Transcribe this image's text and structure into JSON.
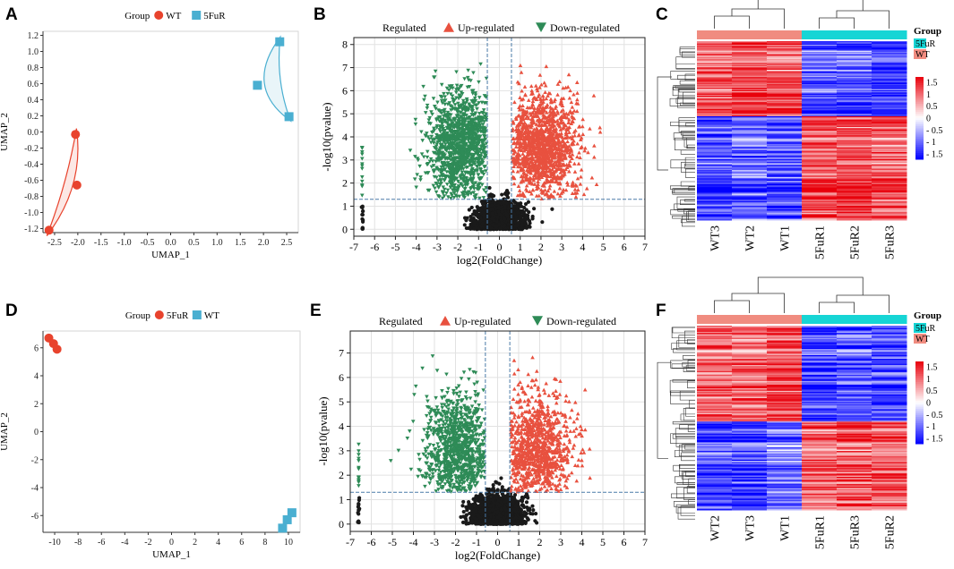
{
  "panels": {
    "A": {
      "label": "A"
    },
    "B": {
      "label": "B"
    },
    "C": {
      "label": "C"
    },
    "D": {
      "label": "D"
    },
    "E": {
      "label": "E"
    },
    "F": {
      "label": "F"
    }
  },
  "colors": {
    "wt": "#e8432d",
    "fur": "#4aafd1",
    "up": "#e8513f",
    "down": "#2e8b57",
    "ns": "#1a1a1a",
    "heat_high": "#e8000b",
    "heat_mid": "#ffffff",
    "heat_low": "#0000ff",
    "group_wt": "#f08c80",
    "group_fur": "#16d5d5"
  },
  "chart_data": [
    {
      "panel": "A",
      "type": "scatter",
      "xlabel": "UMAP_1",
      "ylabel": "UMAP_2",
      "xlim": [
        -2.75,
        2.75
      ],
      "ylim": [
        -1.25,
        1.25
      ],
      "xticks": [
        -2.5,
        -2.0,
        -1.5,
        -1.0,
        -0.5,
        0.0,
        0.5,
        1.0,
        1.5,
        2.0,
        2.5
      ],
      "yticks": [
        -1.2,
        -1.0,
        -0.8,
        -0.6,
        -0.4,
        -0.2,
        0.0,
        0.2,
        0.4,
        0.6,
        0.8,
        1.0,
        1.2
      ],
      "tick_decimals": 1,
      "legend": {
        "title": "Group",
        "entries": [
          "WT",
          "5FuR"
        ]
      },
      "series": [
        {
          "name": "WT",
          "marker": "circle",
          "points": [
            [
              -2.05,
              -0.03
            ],
            [
              -2.02,
              -0.66
            ],
            [
              -2.62,
              -1.22
            ]
          ]
        },
        {
          "name": "5FuR",
          "marker": "square",
          "points": [
            [
              2.35,
              1.12
            ],
            [
              1.87,
              0.58
            ],
            [
              2.55,
              0.19
            ]
          ]
        }
      ]
    },
    {
      "panel": "B",
      "type": "volcano",
      "xlabel": "log2(FoldChange)",
      "ylabel": "-log10(pvalue)",
      "xlim": [
        -7,
        7
      ],
      "ylim": [
        -0.3,
        8.3
      ],
      "xticks": [
        -7,
        -6,
        -5,
        -4,
        -3,
        -2,
        -1,
        0,
        1,
        2,
        3,
        4,
        5,
        6,
        7
      ],
      "yticks": [
        0,
        1,
        2,
        3,
        4,
        5,
        6,
        7,
        8
      ],
      "fc_threshold": [
        -0.58,
        0.58
      ],
      "p_threshold": 1.3,
      "legend": {
        "title": "Regulated",
        "entries": [
          "Up-regulated",
          "Down-regulated"
        ]
      },
      "seed": 11,
      "counts": {
        "up": 1300,
        "down": 1250,
        "ns": 1700
      },
      "up_center": [
        2.1,
        3.6
      ],
      "down_center": [
        -1.9,
        3.7
      ],
      "max_y": 7.9
    },
    {
      "panel": "C",
      "type": "heatmap",
      "samples": [
        "WT3",
        "WT2",
        "WT1",
        "5FuR1",
        "5FuR2",
        "5FuR3"
      ],
      "groups": [
        "WT",
        "WT",
        "WT",
        "5FuR",
        "5FuR",
        "5FuR"
      ],
      "legend_title": "Group",
      "legend_entries": [
        "5FuR",
        "WT"
      ],
      "colorbar_ticks": [
        "1.5",
        "1",
        "0.5",
        "0",
        "- 0.5",
        "- 1",
        "- 1.5"
      ],
      "colorbar_range": [
        -1.5,
        1.5
      ],
      "up_fraction": 0.42,
      "seed": 5
    },
    {
      "panel": "D",
      "type": "scatter",
      "xlabel": "UMAP_1",
      "ylabel": "UMAP_2",
      "xlim": [
        -11,
        11
      ],
      "ylim": [
        -7.2,
        7.2
      ],
      "xticks": [
        -10,
        -8,
        -6,
        -4,
        -2,
        0,
        2,
        4,
        6,
        8,
        10
      ],
      "yticks": [
        -6,
        -4,
        -2,
        0,
        2,
        4,
        6
      ],
      "tick_decimals": 0,
      "legend": {
        "title": "Group",
        "entries": [
          "5FuR",
          "WT"
        ]
      },
      "series": [
        {
          "name": "5FuR",
          "marker": "circle",
          "points": [
            [
              -10.5,
              6.7
            ],
            [
              -10.1,
              6.3
            ],
            [
              -9.8,
              5.9
            ]
          ]
        },
        {
          "name": "WT",
          "marker": "square",
          "points": [
            [
              9.5,
              -6.9
            ],
            [
              9.9,
              -6.3
            ],
            [
              10.3,
              -5.8
            ]
          ]
        }
      ]
    },
    {
      "panel": "E",
      "type": "volcano",
      "xlabel": "log2(FoldChange)",
      "ylabel": "-log10(pvalue)",
      "xlim": [
        -7,
        7
      ],
      "ylim": [
        -0.3,
        7.9
      ],
      "xticks": [
        -7,
        -6,
        -5,
        -4,
        -3,
        -2,
        -1,
        0,
        1,
        2,
        3,
        4,
        5,
        6,
        7
      ],
      "yticks": [
        0,
        1,
        2,
        3,
        4,
        5,
        6,
        7
      ],
      "fc_threshold": [
        -0.58,
        0.58
      ],
      "p_threshold": 1.3,
      "legend": {
        "title": "Regulated",
        "entries": [
          "Up-regulated",
          "Down-regulated"
        ]
      },
      "seed": 23,
      "counts": {
        "up": 950,
        "down": 950,
        "ns": 2000
      },
      "up_center": [
        1.9,
        3.2
      ],
      "down_center": [
        -1.9,
        3.2
      ],
      "max_y": 7.6
    },
    {
      "panel": "F",
      "type": "heatmap",
      "samples": [
        "WT2",
        "WT3",
        "WT1",
        "5FuR1",
        "5FuR3",
        "5FuR2"
      ],
      "groups": [
        "WT",
        "WT",
        "WT",
        "5FuR",
        "5FuR",
        "5FuR"
      ],
      "legend_title": "Group",
      "legend_entries": [
        "5FuR",
        "WT"
      ],
      "colorbar_ticks": [
        "1.5",
        "1",
        "0.5",
        "0",
        "- 0.5",
        "- 1",
        "- 1.5"
      ],
      "colorbar_range": [
        -1.5,
        1.5
      ],
      "up_fraction": 0.52,
      "seed": 9
    }
  ]
}
